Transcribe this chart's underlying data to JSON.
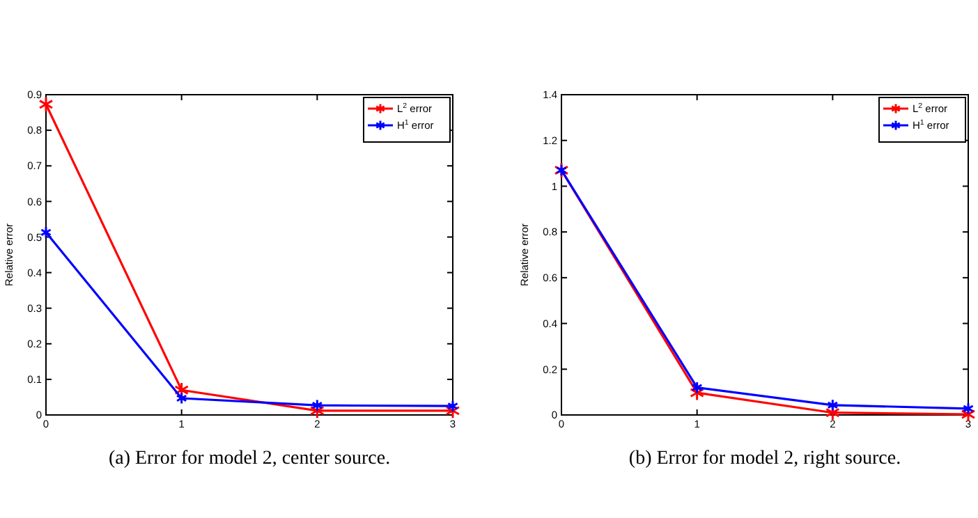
{
  "chart_data": [
    {
      "type": "line",
      "title": "(a)  Error for model 2, center source.",
      "ylabel": "Relative error",
      "x": [
        0,
        1,
        2,
        3
      ],
      "xlim": [
        0,
        3
      ],
      "xticks": [
        0,
        1,
        2,
        3
      ],
      "ylim": [
        0,
        0.9
      ],
      "yticks": [
        0,
        0.1,
        0.2,
        0.3,
        0.4,
        0.5,
        0.6,
        0.7,
        0.8,
        0.9
      ],
      "marker": "cross",
      "line_style": "solid",
      "grid": false,
      "legend": "top right",
      "series": [
        {
          "name": "L$^{2}$ error",
          "color": "#ff0000",
          "values": [
            0.873,
            0.07,
            0.012,
            0.012
          ]
        },
        {
          "name": "H$^{1}$ error",
          "color": "#0000ff",
          "values": [
            0.513,
            0.047,
            0.027,
            0.025
          ]
        }
      ]
    },
    {
      "type": "line",
      "title": "(b)  Error for model 2, right source.",
      "ylabel": "Relative error",
      "x": [
        0,
        1,
        2,
        3
      ],
      "xlim": [
        0,
        3
      ],
      "xticks": [
        0,
        1,
        2,
        3
      ],
      "ylim": [
        0,
        1.4
      ],
      "yticks": [
        0,
        0.2,
        0.4,
        0.6,
        0.8,
        1,
        1.2,
        1.4
      ],
      "marker": "cross",
      "line_style": "solid",
      "grid": false,
      "legend": "top right",
      "series": [
        {
          "name": "L$^{2}$ error",
          "color": "#ff0000",
          "values": [
            1.07,
            0.097,
            0.01,
            0.003
          ]
        },
        {
          "name": "H$^{1}$ error",
          "color": "#0000ff",
          "values": [
            1.07,
            0.12,
            0.043,
            0.028
          ]
        }
      ]
    }
  ]
}
